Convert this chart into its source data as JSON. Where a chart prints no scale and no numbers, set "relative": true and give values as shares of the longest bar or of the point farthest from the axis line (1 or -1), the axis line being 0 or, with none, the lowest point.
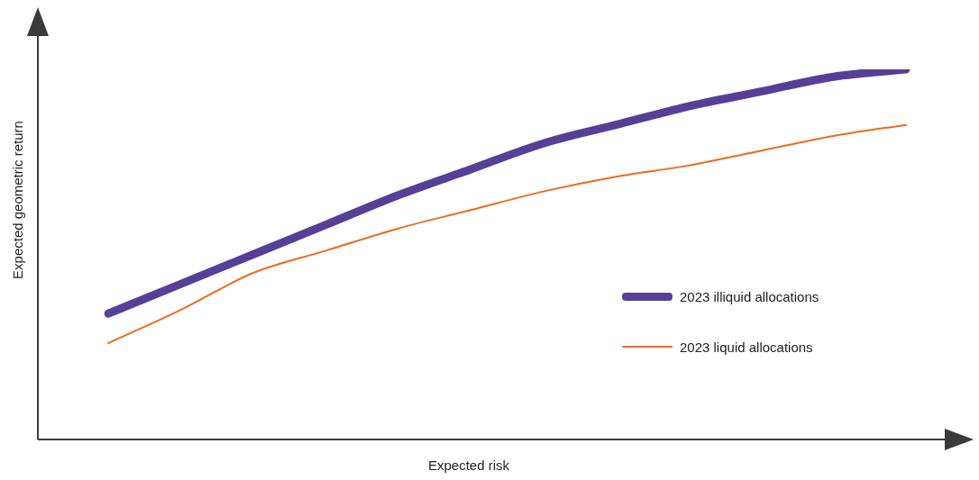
{
  "chart_data": {
    "type": "line",
    "relative": true,
    "xlabel": "Expected risk",
    "ylabel": "Expected geometric return",
    "legend": "right",
    "marker": "none",
    "categories": [
      null,
      null,
      null,
      null,
      null,
      null,
      null,
      null,
      null,
      null,
      null,
      null
    ],
    "series": [
      {
        "name": "2023 illiquid allocations",
        "color": "#563f97",
        "values": [
          0.34,
          0.42,
          0.5,
          0.58,
          0.66,
          0.73,
          0.8,
          0.85,
          0.9,
          0.94,
          0.98,
          1
        ]
      },
      {
        "name": "2023 liquid allocations",
        "color": "#ee6a1f",
        "values": [
          0.26,
          0.35,
          0.45,
          0.51,
          0.57,
          0.62,
          0.67,
          0.71,
          0.74,
          0.78,
          0.82,
          0.85
        ]
      }
    ]
  }
}
